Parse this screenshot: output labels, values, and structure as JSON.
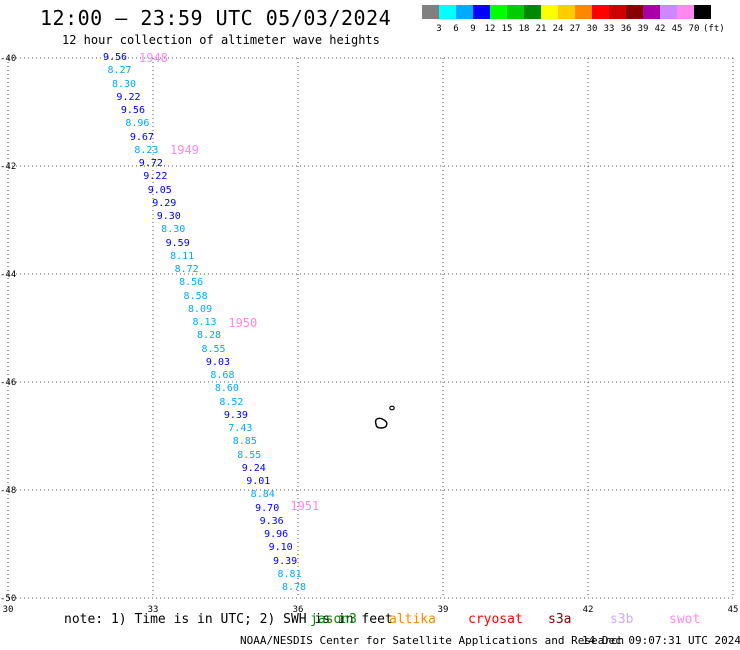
{
  "title": "12:00 — 23:59 UTC 05/03/2024",
  "subtitle": "12 hour collection of altimeter wave heights",
  "note": "note: 1) Time is in UTC; 2) SWH is in feet",
  "footer": "NOAA/NESDIS Center for Satellite Applications and Research",
  "footer_time": "14 Dec 09:07:31 UTC 2024",
  "legend": {
    "unit": "(ft)",
    "labels": [
      "3",
      "6",
      "9",
      "12",
      "15",
      "18",
      "21",
      "24",
      "27",
      "30",
      "33",
      "36",
      "39",
      "42",
      "45",
      "70"
    ],
    "colors": [
      "#808080",
      "#00ffff",
      "#00aaff",
      "#0000ff",
      "#00ff00",
      "#00cc00",
      "#008800",
      "#ffff00",
      "#ffcc00",
      "#ff8800",
      "#ff0000",
      "#cc0000",
      "#880000",
      "#aa00aa",
      "#cc88ff",
      "#ff88ee",
      "#000000"
    ]
  },
  "missions": [
    {
      "name": "jason3",
      "color": "#008800"
    },
    {
      "name": "altika",
      "color": "#ff8800"
    },
    {
      "name": "cryosat",
      "color": "#ff0000"
    },
    {
      "name": "s3a",
      "color": "#880000"
    },
    {
      "name": "s3b",
      "color": "#ccaaff"
    },
    {
      "name": "swot",
      "color": "#ff88ee"
    }
  ],
  "map": {
    "lon_range": [
      30,
      45
    ],
    "lat_range": [
      -50,
      -40
    ],
    "lon_ticks": [
      "30",
      "33",
      "36",
      "39",
      "42",
      "45"
    ],
    "lat_ticks": [
      "-40",
      "-42",
      "-44",
      "-46",
      "-48",
      "-50"
    ],
    "grid": true
  },
  "track": {
    "time_labels": [
      {
        "text": "1948",
        "lat": -40.0
      },
      {
        "text": "1949",
        "lat": -41.7
      },
      {
        "text": "1950",
        "lat": -44.9
      },
      {
        "text": "1951",
        "lat": -48.3
      }
    ],
    "obs": [
      {
        "v": "9.56",
        "c": "#0000ff"
      },
      {
        "v": "8.27",
        "c": "#00aaff"
      },
      {
        "v": "8.30",
        "c": "#00aaff"
      },
      {
        "v": "9.22",
        "c": "#0000ff"
      },
      {
        "v": "9.56",
        "c": "#0000ff"
      },
      {
        "v": "8.96",
        "c": "#00aaff"
      },
      {
        "v": "9.67",
        "c": "#0000ff"
      },
      {
        "v": "8.23",
        "c": "#00aaff"
      },
      {
        "v": "9.72",
        "c": "#0000ff"
      },
      {
        "v": "9.22",
        "c": "#0000ff"
      },
      {
        "v": "9.05",
        "c": "#0000ff"
      },
      {
        "v": "9.29",
        "c": "#0000ff"
      },
      {
        "v": "9.30",
        "c": "#0000ff"
      },
      {
        "v": "8.30",
        "c": "#00aaff"
      },
      {
        "v": "9.59",
        "c": "#0000ff"
      },
      {
        "v": "8.11",
        "c": "#00aaff"
      },
      {
        "v": "8.72",
        "c": "#00aaff"
      },
      {
        "v": "8.56",
        "c": "#00aaff"
      },
      {
        "v": "8.58",
        "c": "#00aaff"
      },
      {
        "v": "8.09",
        "c": "#00aaff"
      },
      {
        "v": "8.13",
        "c": "#00aaff"
      },
      {
        "v": "8.28",
        "c": "#00aaff"
      },
      {
        "v": "8.55",
        "c": "#00aaff"
      },
      {
        "v": "9.03",
        "c": "#0000ff"
      },
      {
        "v": "8.68",
        "c": "#00aaff"
      },
      {
        "v": "8.60",
        "c": "#00aaff"
      },
      {
        "v": "8.52",
        "c": "#00aaff"
      },
      {
        "v": "9.39",
        "c": "#0000ff"
      },
      {
        "v": "7.43",
        "c": "#00aaff"
      },
      {
        "v": "8.85",
        "c": "#00aaff"
      },
      {
        "v": "8.55",
        "c": "#00aaff"
      },
      {
        "v": "9.24",
        "c": "#0000ff"
      },
      {
        "v": "9.01",
        "c": "#0000ff"
      },
      {
        "v": "8.84",
        "c": "#00aaff"
      },
      {
        "v": "9.70",
        "c": "#0000ff"
      },
      {
        "v": "9.36",
        "c": "#0000ff"
      },
      {
        "v": "9.96",
        "c": "#0000ff"
      },
      {
        "v": "9.10",
        "c": "#0000ff"
      },
      {
        "v": "9.39",
        "c": "#0000ff"
      },
      {
        "v": "8.81",
        "c": "#00aaff"
      },
      {
        "v": "8.78",
        "c": "#00aaff"
      }
    ]
  }
}
